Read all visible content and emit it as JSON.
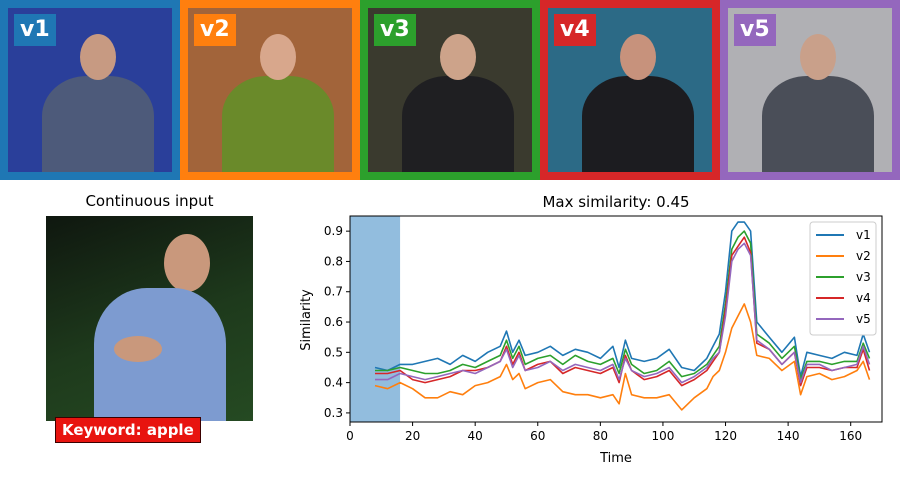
{
  "videos": [
    {
      "label": "v1",
      "color": "#1f77b4",
      "bg": "#2a3f9a"
    },
    {
      "label": "v2",
      "color": "#ff7f0e",
      "bg": "#a2643a"
    },
    {
      "label": "v3",
      "color": "#2ca02c",
      "bg": "#3a3a2e"
    },
    {
      "label": "v4",
      "color": "#d62728",
      "bg": "#2c6a86"
    },
    {
      "label": "v5",
      "color": "#9467bd",
      "bg": "#b0b0b4"
    }
  ],
  "input": {
    "title": "Continuous input",
    "keyword": "Keyword: apple"
  },
  "chart_data": {
    "type": "line",
    "title": "Max similarity: 0.45",
    "xlabel": "Time",
    "ylabel": "Similarity",
    "xlim": [
      0,
      170
    ],
    "ylim": [
      0.27,
      0.95
    ],
    "xticks": [
      "0",
      "20",
      "40",
      "60",
      "80",
      "100",
      "120",
      "140",
      "160"
    ],
    "yticks": [
      "0.3",
      "0.4",
      "0.5",
      "0.6",
      "0.7",
      "0.8",
      "0.9"
    ],
    "shaded_region": [
      0,
      16
    ],
    "legend_position": "top-right",
    "x": [
      8,
      12,
      16,
      20,
      24,
      28,
      32,
      36,
      40,
      44,
      48,
      50,
      52,
      54,
      56,
      60,
      64,
      68,
      72,
      76,
      80,
      84,
      86,
      88,
      90,
      94,
      98,
      102,
      106,
      110,
      114,
      116,
      118,
      120,
      122,
      124,
      126,
      128,
      130,
      134,
      138,
      142,
      144,
      146,
      150,
      154,
      158,
      162,
      164,
      166
    ],
    "series": [
      {
        "name": "v1",
        "color": "#1f77b4",
        "values": [
          0.45,
          0.44,
          0.46,
          0.46,
          0.47,
          0.48,
          0.46,
          0.49,
          0.47,
          0.5,
          0.52,
          0.57,
          0.5,
          0.54,
          0.49,
          0.5,
          0.52,
          0.49,
          0.51,
          0.5,
          0.48,
          0.52,
          0.45,
          0.54,
          0.48,
          0.47,
          0.48,
          0.51,
          0.45,
          0.44,
          0.48,
          0.52,
          0.56,
          0.7,
          0.9,
          0.93,
          0.93,
          0.9,
          0.6,
          0.55,
          0.5,
          0.55,
          0.42,
          0.5,
          0.49,
          0.48,
          0.5,
          0.49,
          0.56,
          0.5
        ]
      },
      {
        "name": "v2",
        "color": "#ff7f0e",
        "values": [
          0.39,
          0.38,
          0.4,
          0.38,
          0.35,
          0.35,
          0.37,
          0.36,
          0.39,
          0.4,
          0.42,
          0.46,
          0.41,
          0.43,
          0.38,
          0.4,
          0.41,
          0.37,
          0.36,
          0.36,
          0.35,
          0.36,
          0.33,
          0.43,
          0.36,
          0.35,
          0.35,
          0.36,
          0.31,
          0.35,
          0.38,
          0.42,
          0.44,
          0.5,
          0.58,
          0.62,
          0.66,
          0.6,
          0.49,
          0.48,
          0.44,
          0.47,
          0.36,
          0.42,
          0.43,
          0.41,
          0.42,
          0.44,
          0.47,
          0.41
        ]
      },
      {
        "name": "v3",
        "color": "#2ca02c",
        "values": [
          0.44,
          0.44,
          0.45,
          0.44,
          0.43,
          0.43,
          0.44,
          0.46,
          0.45,
          0.47,
          0.49,
          0.54,
          0.48,
          0.52,
          0.46,
          0.48,
          0.49,
          0.46,
          0.49,
          0.47,
          0.46,
          0.48,
          0.43,
          0.51,
          0.46,
          0.43,
          0.44,
          0.47,
          0.42,
          0.43,
          0.46,
          0.49,
          0.52,
          0.66,
          0.84,
          0.88,
          0.9,
          0.86,
          0.56,
          0.53,
          0.48,
          0.52,
          0.41,
          0.47,
          0.47,
          0.46,
          0.47,
          0.47,
          0.53,
          0.48
        ]
      },
      {
        "name": "v4",
        "color": "#d62728",
        "values": [
          0.43,
          0.43,
          0.44,
          0.41,
          0.4,
          0.41,
          0.42,
          0.44,
          0.44,
          0.45,
          0.47,
          0.52,
          0.46,
          0.5,
          0.44,
          0.46,
          0.47,
          0.43,
          0.45,
          0.44,
          0.43,
          0.45,
          0.4,
          0.49,
          0.44,
          0.41,
          0.42,
          0.44,
          0.39,
          0.41,
          0.44,
          0.47,
          0.5,
          0.64,
          0.82,
          0.85,
          0.88,
          0.83,
          0.53,
          0.51,
          0.46,
          0.5,
          0.39,
          0.45,
          0.45,
          0.44,
          0.45,
          0.45,
          0.51,
          0.44
        ]
      },
      {
        "name": "v5",
        "color": "#9467bd",
        "values": [
          0.41,
          0.41,
          0.43,
          0.42,
          0.41,
          0.42,
          0.43,
          0.44,
          0.43,
          0.45,
          0.47,
          0.51,
          0.45,
          0.49,
          0.44,
          0.45,
          0.47,
          0.44,
          0.46,
          0.45,
          0.44,
          0.46,
          0.41,
          0.48,
          0.44,
          0.42,
          0.43,
          0.45,
          0.4,
          0.42,
          0.45,
          0.48,
          0.5,
          0.62,
          0.8,
          0.84,
          0.86,
          0.82,
          0.54,
          0.51,
          0.46,
          0.5,
          0.4,
          0.46,
          0.46,
          0.44,
          0.45,
          0.46,
          0.52,
          0.46
        ]
      }
    ]
  }
}
